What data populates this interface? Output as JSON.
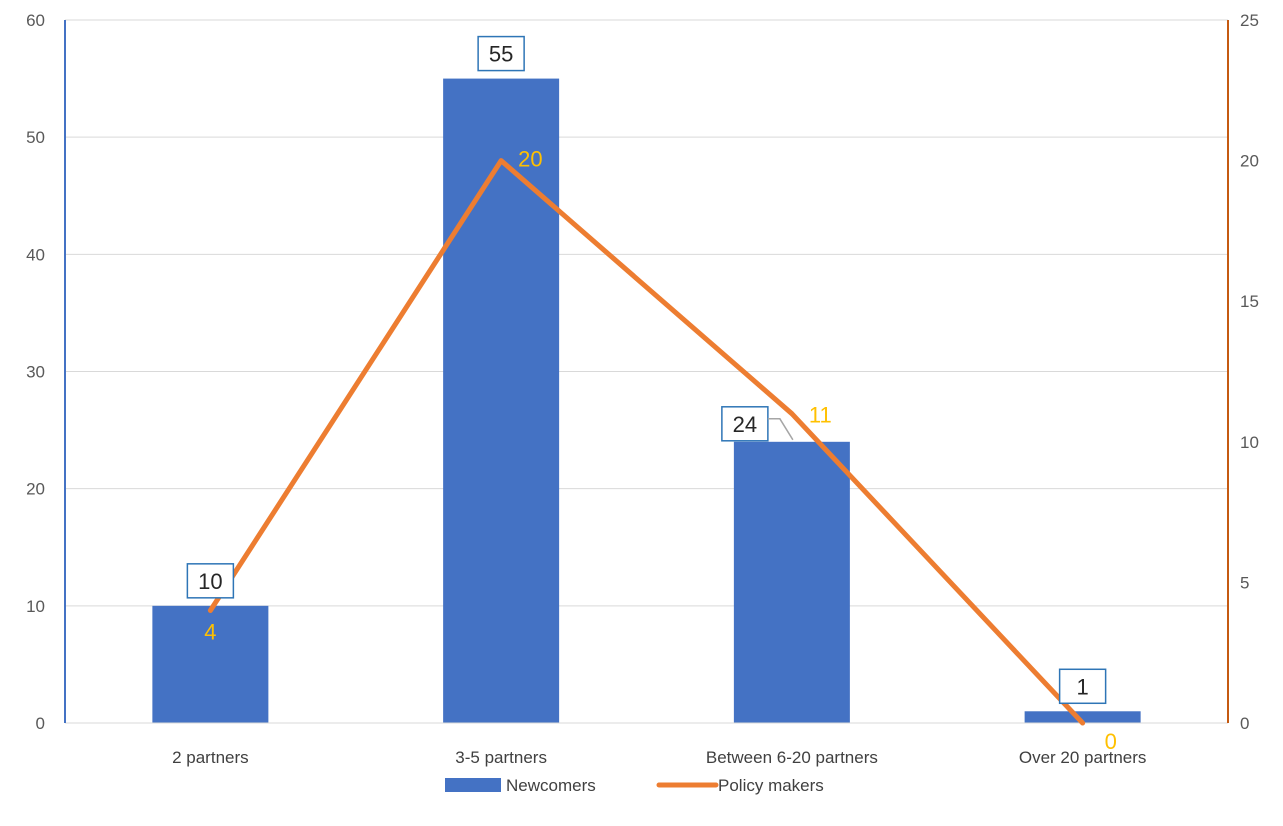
{
  "colors": {
    "bar": "#4472C4",
    "line": "#ED7D31",
    "line_label": "#FFC000",
    "grid": "#D9D9D9",
    "left_axis": "#4472C4",
    "right_axis": "#C55A11",
    "label_box_border": "#2E75B6"
  },
  "chart_data": {
    "type": "bar",
    "categories": [
      "2 partners",
      "3-5 partners",
      "Between 6-20 partners",
      "Over 20 partners"
    ],
    "series": [
      {
        "name": "Newcomers",
        "type": "bar",
        "axis": "left",
        "values": [
          10,
          55,
          24,
          1
        ]
      },
      {
        "name": "Policy makers",
        "type": "line",
        "axis": "right",
        "values": [
          4,
          20,
          11,
          0
        ]
      }
    ],
    "y_left": {
      "min": 0,
      "max": 60,
      "ticks": [
        "0",
        "10",
        "20",
        "30",
        "40",
        "50",
        "60"
      ]
    },
    "y_right": {
      "min": 0,
      "max": 25,
      "ticks": [
        "0",
        "5",
        "10",
        "15",
        "20",
        "25"
      ]
    },
    "grid": true,
    "legend": "bottom-center"
  }
}
